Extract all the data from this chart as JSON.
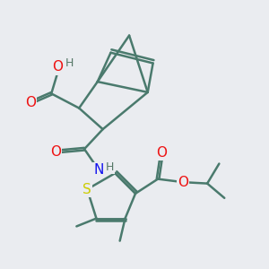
{
  "background_color": "#eaecf0",
  "bond_color": "#4a7a6d",
  "bond_width": 1.8,
  "atom_colors": {
    "O": "#ee1111",
    "N": "#1111ee",
    "S": "#cccc00",
    "H": "#557766",
    "C": "#4a7a6d"
  },
  "font_size_atom": 11,
  "font_size_h": 9,
  "figsize": [
    3.0,
    3.0
  ],
  "dpi": 100
}
